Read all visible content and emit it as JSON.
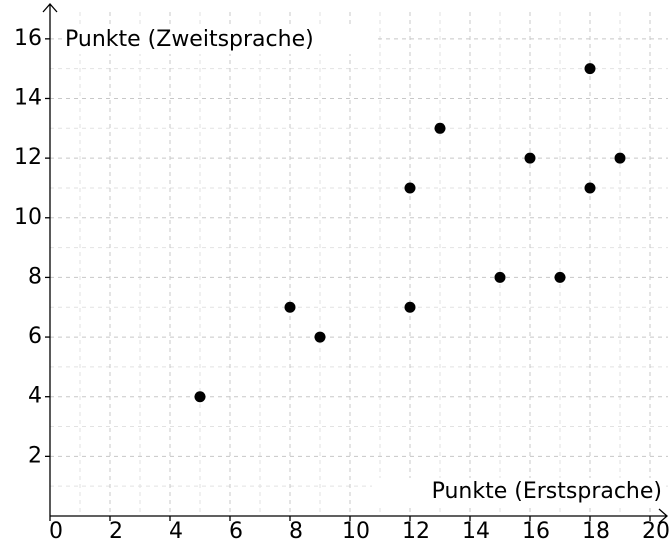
{
  "chart_data": {
    "type": "scatter",
    "x_label": "Punkte (Erstsprache)",
    "y_label": "Punkte (Zweitsprache)",
    "x": [
      5,
      8,
      9,
      12,
      12,
      13,
      15,
      16,
      17,
      18,
      18,
      19
    ],
    "values": [
      4,
      7,
      6,
      7,
      11,
      13,
      8,
      12,
      8,
      11,
      15,
      12
    ],
    "color": "#000000",
    "xlim": [
      0,
      20.6
    ],
    "ylim": [
      0,
      16.9
    ],
    "xticks": [
      0,
      2,
      4,
      6,
      8,
      10,
      12,
      14,
      16,
      18,
      20
    ],
    "yticks": [
      2,
      4,
      6,
      8,
      10,
      12,
      14,
      16
    ],
    "grid": true
  }
}
